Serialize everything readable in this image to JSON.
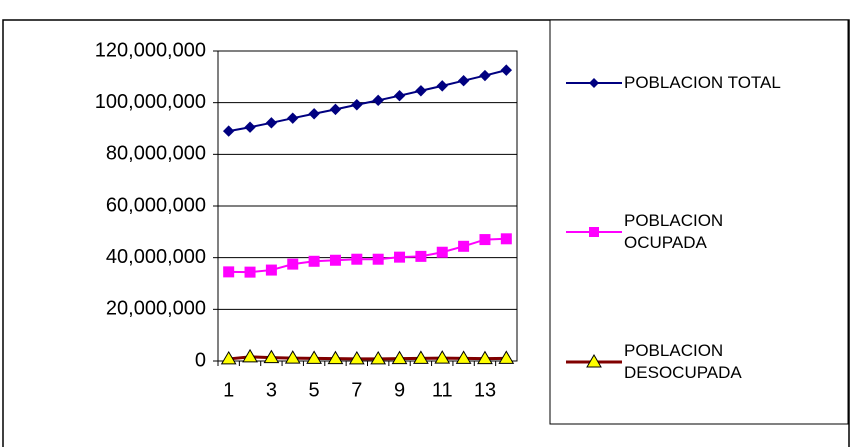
{
  "chart_data": {
    "type": "line",
    "categories": [
      1,
      null,
      3,
      null,
      5,
      null,
      7,
      null,
      9,
      null,
      11,
      null,
      13,
      null
    ],
    "ylim": [
      0,
      120000000
    ],
    "yticks": [
      0,
      {
        "value": 20000000,
        "label": "20,000,000"
      },
      {
        "value": 40000000,
        "label": "40,000,000"
      },
      {
        "value": 60000000,
        "label": "60,000,000"
      },
      {
        "value": 80000000,
        "label": "80,000,000"
      },
      {
        "value": 100000000,
        "label": "100,000,000"
      },
      {
        "value": 120000000,
        "label": "120,000,000"
      }
    ],
    "grid": true,
    "legend": "right",
    "series": [
      {
        "name": "POBLACION TOTAL",
        "color": "#000080",
        "marker": "diamond",
        "values": [
          89000000,
          90500000,
          92200000,
          94000000,
          95700000,
          97400000,
          99200000,
          100900000,
          102700000,
          104600000,
          106500000,
          108500000,
          110500000,
          112600000
        ]
      },
      {
        "name": "POBLACION OCUPADA",
        "color": "#ff00ff",
        "marker": "square",
        "values": [
          34500000,
          34400000,
          35200000,
          37500000,
          38600000,
          39000000,
          39400000,
          39400000,
          40200000,
          40500000,
          42100000,
          44400000,
          47000000,
          47300000
        ]
      },
      {
        "name": "POBLACION DESOCUPADA",
        "color": "#800000",
        "marker": "triangle",
        "values": [
          800000,
          1600000,
          1300000,
          1100000,
          1000000,
          900000,
          800000,
          800000,
          900000,
          1000000,
          1100000,
          1000000,
          900000,
          1000000
        ]
      }
    ]
  }
}
